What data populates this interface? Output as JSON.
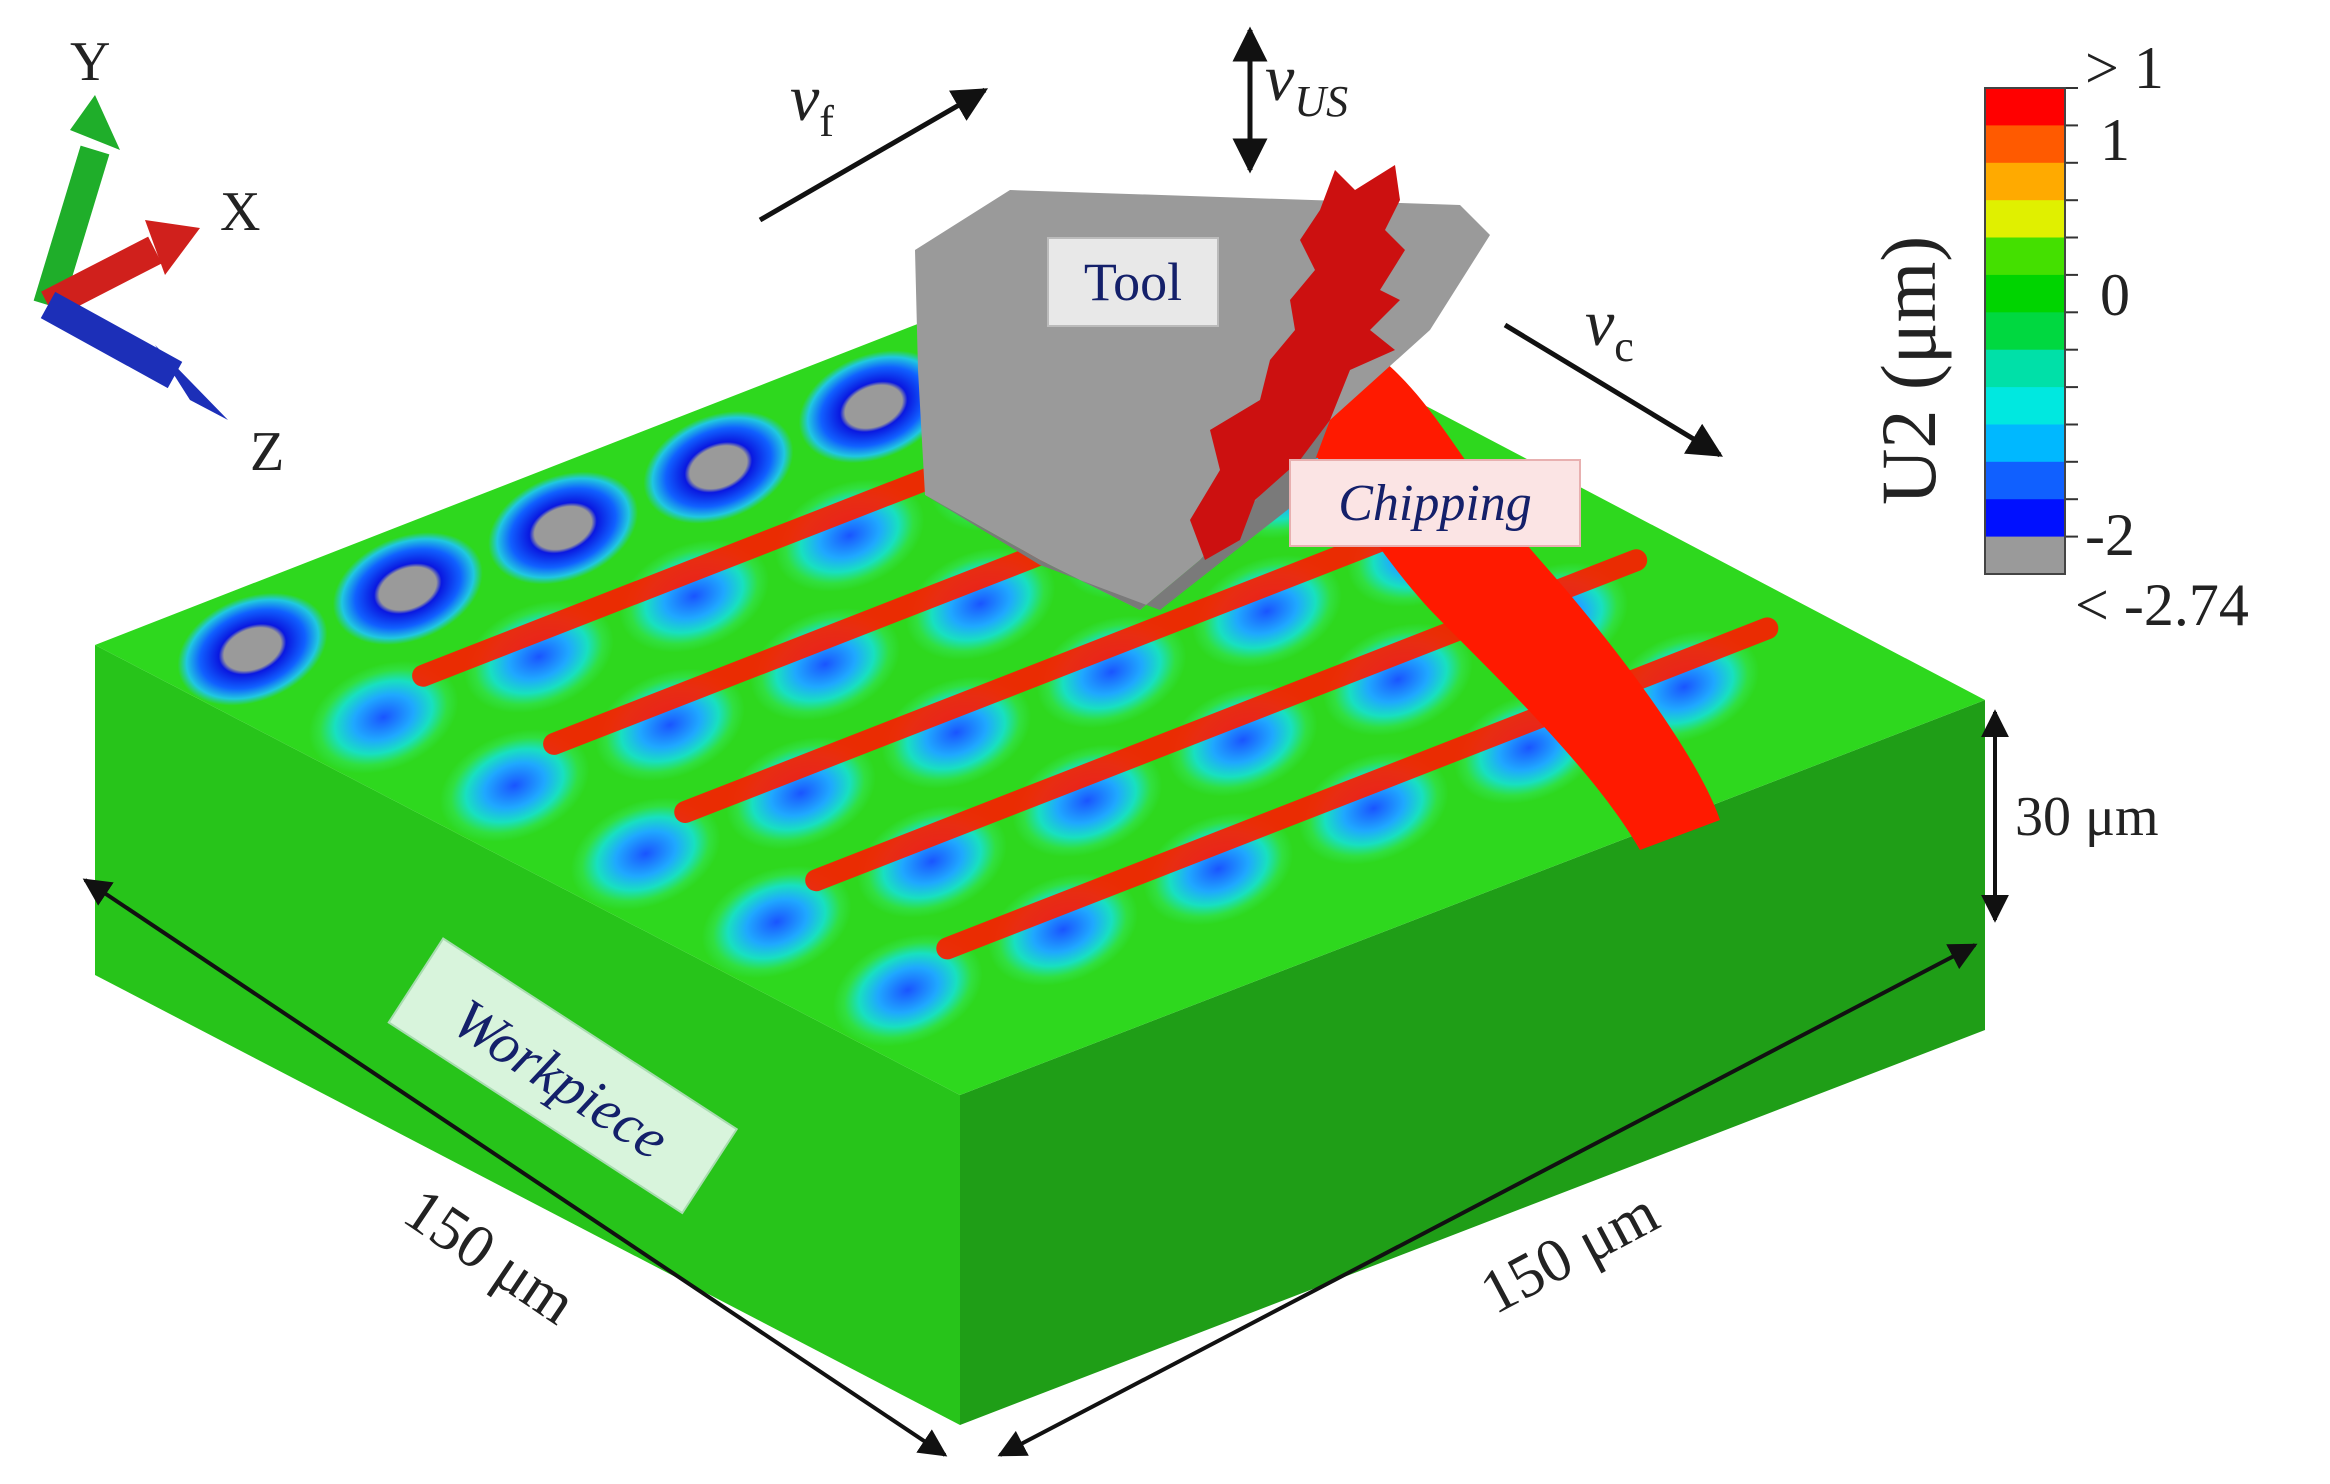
{
  "axes": {
    "y_label": "Y",
    "x_label": "X",
    "z_label": "Z",
    "y_color": "#1fae2a",
    "x_color": "#d0201c",
    "z_color": "#1c2fb8"
  },
  "velocities": {
    "feed_symbol": "v",
    "feed_sub": "f",
    "ultrasonic_symbol": "v",
    "ultrasonic_sub": "US",
    "cutting_symbol": "v",
    "cutting_sub": "c"
  },
  "tags": {
    "tool": "Tool",
    "chipping": "Chipping",
    "workpiece": "Workpiece"
  },
  "dimensions": {
    "width_left": "150 μm",
    "width_right": "150 μm",
    "height": "30 μm"
  },
  "colorbar": {
    "title": "U2 (μm)",
    "tick_top": "> 1",
    "tick_1": "1",
    "tick_0": "0",
    "tick_m2": "-2",
    "tick_bottom": "< -2.74",
    "colors": [
      "#ff0000",
      "#ff5a00",
      "#ffaa00",
      "#e0f000",
      "#44e000",
      "#00d400",
      "#00d840",
      "#00e0a8",
      "#00e8e0",
      "#00b8ff",
      "#1060ff",
      "#0010ff",
      "#9a9a9a"
    ]
  },
  "colors": {
    "workpiece_top": "#2ed81e",
    "workpiece_front": "#27c41a",
    "workpiece_side": "#1f9e17",
    "chip": "#cc1010",
    "tool": "#9a9a9a",
    "ridge": "#ff1a00"
  }
}
